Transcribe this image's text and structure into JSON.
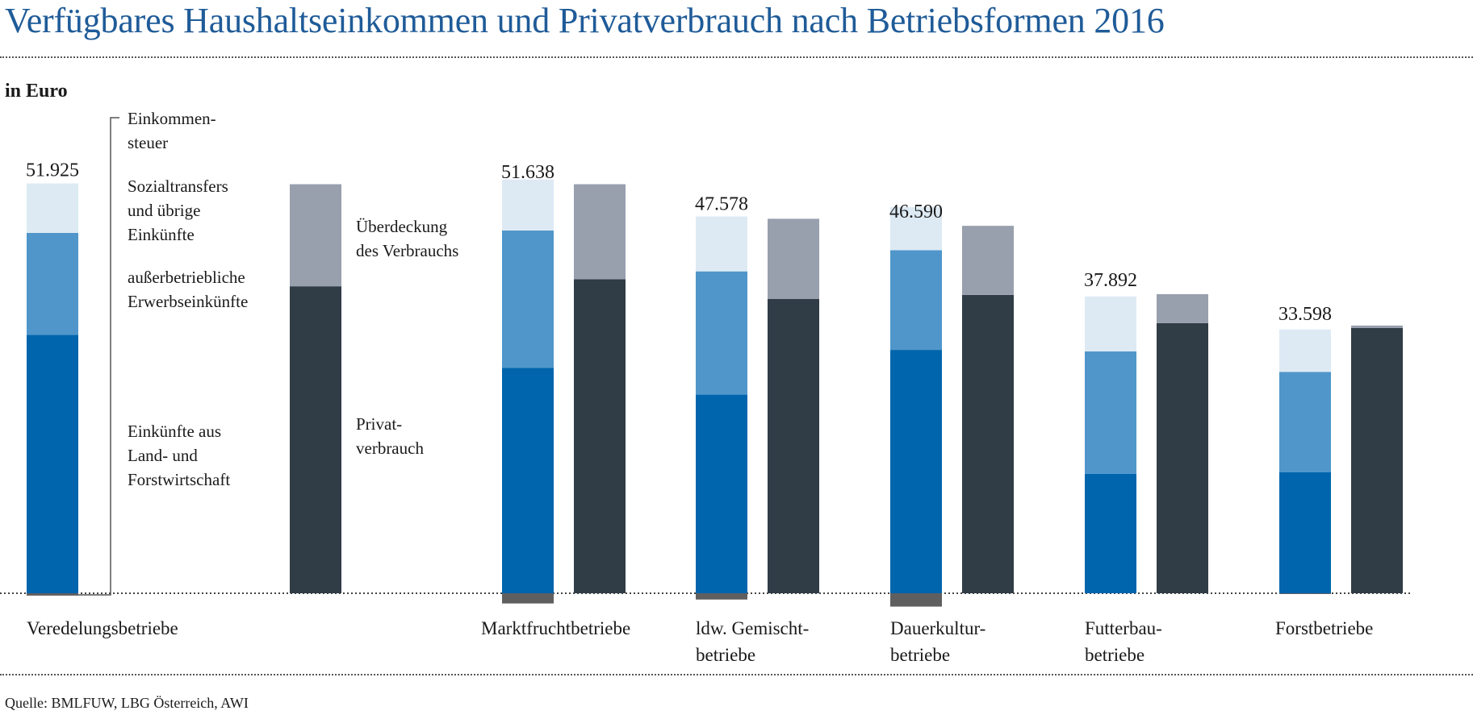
{
  "title": "Verfügbares Haushaltseinkommen und Privatverbrauch nach Betriebsformen 2016",
  "unit_label": "in Euro",
  "source": "Quelle: BMLFUW, LBG Österreich, AWI",
  "colors": {
    "einkommensteuer": "#5f5f5f",
    "sozialtransfers": "#ddeaf4",
    "ausserbetrieblich": "#5096cb",
    "land_forst": "#0065ad",
    "ueberdeckung": "#989fad",
    "privatverbrauch": "#303c46"
  },
  "legend": {
    "einkommensteuer": [
      "Einkommen-",
      "steuer"
    ],
    "sozialtransfers": [
      "Sozialtransfers",
      "und übrige",
      "Einkünfte"
    ],
    "ausserbetrieblich": [
      "außerbetriebliche",
      "Erwerbseinkünfte"
    ],
    "land_forst": [
      "Einkünfte aus",
      "Land- und",
      "Forstwirtschaft"
    ],
    "ueberdeckung": [
      "Überdeckung",
      "des Verbrauchs"
    ],
    "privatverbrauch": [
      "Privat-",
      "verbrauch"
    ]
  },
  "chart_data": {
    "type": "bar",
    "stacked": true,
    "unit": "Euro",
    "categories": [
      "Veredelungsbetriebe",
      "Marktfruchtbetriebe",
      "ldw. Gemischtbetriebe",
      "Dauerkulturbetriebe",
      "Futterbaubetriebe",
      "Forstbetriebe"
    ],
    "category_labels": [
      [
        "Veredelungsbetriebe"
      ],
      [
        "Marktfruchtbetriebe"
      ],
      [
        "ldw. Gemischt-",
        "betriebe"
      ],
      [
        "Dauerkultur-",
        "betriebe"
      ],
      [
        "Futterbau-",
        "betriebe"
      ],
      [
        "Forstbetriebe"
      ]
    ],
    "totals": [
      51925,
      51638,
      47578,
      46590,
      37892,
      33598
    ],
    "total_labels": [
      "51.925",
      "51.638",
      "47.578",
      "46.590",
      "37.892",
      "33.598"
    ],
    "income_series": [
      {
        "key": "land_forst",
        "name": "Einkünfte aus Land- und Forstwirtschaft",
        "values": [
          32900,
          28700,
          25300,
          31000,
          15200,
          15400
        ]
      },
      {
        "key": "ausserbetrieblich",
        "name": "außerbetriebliche Erwerbseinkünfte",
        "values": [
          13000,
          17500,
          15700,
          12700,
          15600,
          12800
        ]
      },
      {
        "key": "sozialtransfers",
        "name": "Sozialtransfers und übrige Einkünfte",
        "values": [
          6300,
          6500,
          7000,
          5500,
          7000,
          5400
        ]
      },
      {
        "key": "einkommensteuer",
        "name": "Einkommensteuer",
        "values": [
          -300,
          -1300,
          -800,
          -1700,
          0,
          -100
        ]
      }
    ],
    "consumption_series": [
      {
        "key": "privatverbrauch",
        "name": "Privatverbrauch",
        "values": [
          39100,
          40000,
          37500,
          38000,
          34400,
          33800
        ]
      },
      {
        "key": "ueberdeckung",
        "name": "Überdeckung des Verbrauchs",
        "values": [
          13000,
          12100,
          10200,
          8800,
          3700,
          300
        ]
      }
    ],
    "ylim": [
      -1800,
      54000
    ],
    "grid": false
  }
}
